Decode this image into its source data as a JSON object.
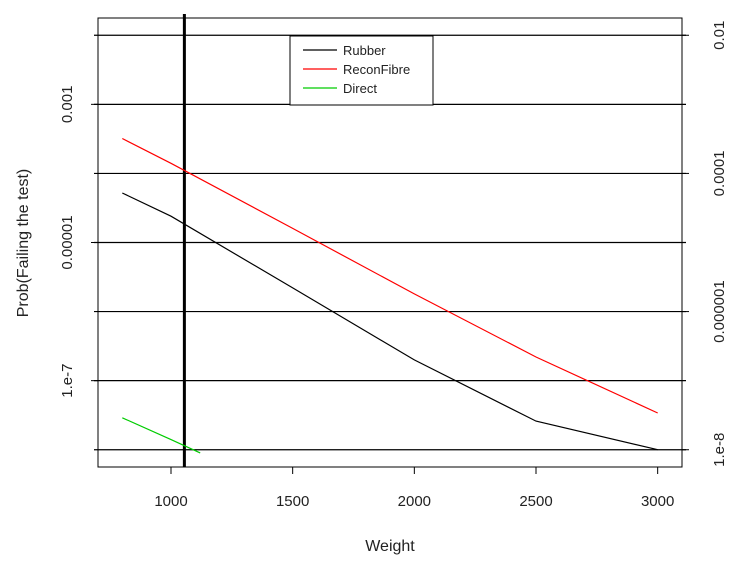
{
  "chart_data": {
    "type": "line",
    "title": "",
    "xlabel": "Weight",
    "ylabel": "Prob(Failing the test)",
    "xlim": [
      700,
      3100
    ],
    "ylim_log10": [
      -8.25,
      -1.75
    ],
    "y_scale": "log",
    "x_ticks": [
      {
        "value": 1000,
        "label": "1000"
      },
      {
        "value": 1500,
        "label": "1500"
      },
      {
        "value": 2000,
        "label": "2000"
      },
      {
        "value": 2500,
        "label": "2500"
      },
      {
        "value": 3000,
        "label": "3000"
      }
    ],
    "y_ticks_left": [
      {
        "log10": -3,
        "label": "0.001"
      },
      {
        "log10": -5,
        "label": "0.00001"
      },
      {
        "log10": -7,
        "label": "1.e-7"
      }
    ],
    "y_ticks_right": [
      {
        "log10": -2,
        "label": "0.01"
      },
      {
        "log10": -4,
        "label": "0.0001"
      },
      {
        "log10": -6,
        "label": "0.000001"
      },
      {
        "log10": -8,
        "label": "1.e-8"
      }
    ],
    "hlines_log10": [
      -2,
      -3,
      -4,
      -5,
      -6,
      -7,
      -8
    ],
    "vline_x": 1055,
    "grid": false,
    "legend_position": "top-center",
    "series": [
      {
        "name": "Rubber",
        "color": "#000000",
        "x": [
          800,
          1000,
          1500,
          2000,
          2500,
          3000
        ],
        "y": [
          5.2e-05,
          2.4e-05,
          2.2e-06,
          2e-07,
          2.6e-08,
          1e-08
        ]
      },
      {
        "name": "ReconFibre",
        "color": "#ff0000",
        "x": [
          800,
          1000,
          1500,
          2000,
          2500,
          3000
        ],
        "y": [
          0.00032,
          0.00014,
          1.6e-05,
          1.8e-06,
          2.2e-07,
          3.4e-08
        ]
      },
      {
        "name": "Direct",
        "color": "#00cc00",
        "x": [
          800,
          1000,
          1120
        ],
        "y": [
          2.9e-08,
          1.4e-08,
          9e-09
        ]
      }
    ]
  }
}
